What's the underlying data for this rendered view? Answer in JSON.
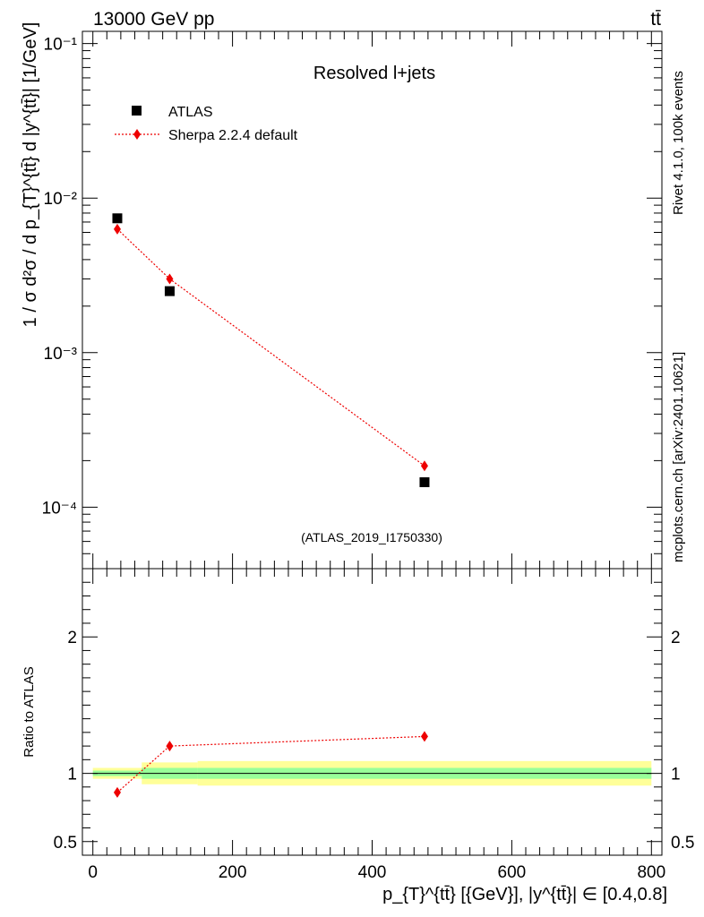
{
  "header": {
    "energy_label": "13000 GeV pp",
    "process_label": "tt̄"
  },
  "side_labels": {
    "rivet": "Rivet 4.1.0,  100k events",
    "mcplots": "mcplots.cern.ch [arXiv:2401.10621]"
  },
  "chart_data": [
    {
      "type": "scatter",
      "panel": "main",
      "title": "Resolved l+jets",
      "analysis_id": "(ATLAS_2019_I1750330)",
      "ylabel": "1 / σ d²σ / d p_{T}^{tt̄} d |y^{tt̄}| [1/GeV]",
      "yscale": "log",
      "ylim": [
        4e-05,
        0.12
      ],
      "xlim": [
        -15,
        815
      ],
      "ytick_labels": [
        "10⁻⁴",
        "10⁻³",
        "10⁻²",
        "10⁻¹"
      ],
      "legend": [
        "ATLAS",
        "Sherpa 2.2.4 default"
      ],
      "series": [
        {
          "name": "ATLAS",
          "marker": "square",
          "color": "#000000",
          "x": [
            35,
            110,
            475
          ],
          "y": [
            0.0074,
            0.0025,
            0.000145
          ]
        },
        {
          "name": "Sherpa 2.2.4 default",
          "marker": "diamond",
          "color": "#ee0000",
          "line": "dotted",
          "x": [
            35,
            110,
            475
          ],
          "y": [
            0.0063,
            0.003,
            0.000185
          ]
        }
      ]
    },
    {
      "type": "line",
      "panel": "ratio",
      "ylabel": "Ratio to ATLAS",
      "xlabel": "p_{T}^{tt̄} [{GeV}], |y^{tt̄}| ∈ [0.4,0.8]",
      "ylim": [
        0.4,
        2.5
      ],
      "xlim": [
        -15,
        815
      ],
      "xtick_labels": [
        "0",
        "200",
        "400",
        "600",
        "800"
      ],
      "ytick_labels": [
        "0.5",
        "1",
        "2"
      ],
      "bands": [
        {
          "x_lo": 0,
          "x_hi": 70,
          "inner_lo": 0.98,
          "inner_hi": 1.02,
          "outer_lo": 0.96,
          "outer_hi": 1.04
        },
        {
          "x_lo": 70,
          "x_hi": 150,
          "inner_lo": 0.96,
          "inner_hi": 1.04,
          "outer_lo": 0.92,
          "outer_hi": 1.08
        },
        {
          "x_lo": 150,
          "x_hi": 800,
          "inner_lo": 0.96,
          "inner_hi": 1.04,
          "outer_lo": 0.91,
          "outer_hi": 1.09
        }
      ],
      "series": [
        {
          "name": "Sherpa 2.2.4 default",
          "marker": "diamond",
          "color": "#ee0000",
          "line": "dotted",
          "x": [
            35,
            110,
            475
          ],
          "y": [
            0.86,
            1.2,
            1.27
          ]
        }
      ]
    }
  ]
}
